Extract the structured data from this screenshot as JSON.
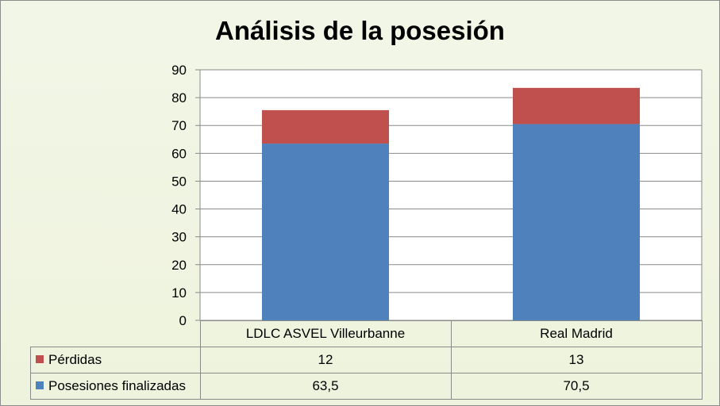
{
  "chart_data": {
    "type": "bar",
    "stacked": true,
    "title": "Análisis de la posesión",
    "categories": [
      "LDLC ASVEL Villeurbanne",
      "Real Madrid"
    ],
    "series": [
      {
        "name": "Posesiones finalizadas",
        "values": [
          63.5,
          70.5
        ],
        "labels": [
          "63,5",
          "70,5"
        ],
        "color": "#4f81bd"
      },
      {
        "name": "Pérdidas",
        "values": [
          12,
          13
        ],
        "labels": [
          "12",
          "13"
        ],
        "color": "#c0504d"
      }
    ],
    "ylim": [
      0,
      90
    ],
    "yticks": [
      "0",
      "10",
      "20",
      "30",
      "40",
      "50",
      "60",
      "70",
      "80",
      "90"
    ],
    "grid": true,
    "legend": "data-table"
  }
}
